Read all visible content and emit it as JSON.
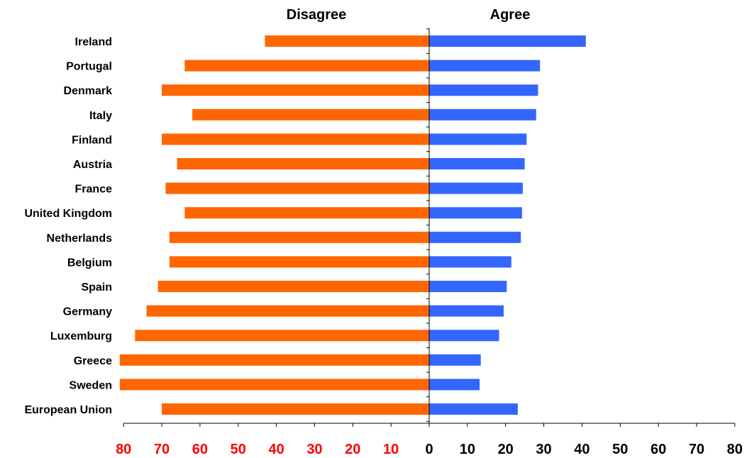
{
  "chart_data": {
    "type": "bar",
    "orientation": "horizontal-diverging",
    "headers": {
      "left": "Disagree",
      "right": "Agree"
    },
    "categories": [
      "Ireland",
      "Portugal",
      "Denmark",
      "Italy",
      "Finland",
      "Austria",
      "France",
      "United Kingdom",
      "Netherlands",
      "Belgium",
      "Spain",
      "Germany",
      "Luxemburg",
      "Greece",
      "Sweden",
      "European Union"
    ],
    "series": [
      {
        "name": "Disagree",
        "color": "#ff6600",
        "values": [
          43,
          64,
          70,
          62,
          70,
          66,
          69,
          64,
          68,
          68,
          71,
          74,
          77,
          81,
          81,
          70
        ]
      },
      {
        "name": "Agree",
        "color": "#3366ff",
        "values": [
          41,
          29,
          28.5,
          28,
          25.5,
          25,
          24.5,
          24.3,
          24,
          21.5,
          20.3,
          19.5,
          18.3,
          13.5,
          13.2,
          23.2
        ]
      }
    ],
    "xlim": [
      -80,
      80
    ],
    "ticks": {
      "left": [
        "80",
        "70",
        "60",
        "50",
        "40",
        "30",
        "20",
        "10"
      ],
      "left_color": "#ff0000",
      "right": [
        "0",
        "10",
        "20",
        "30",
        "40",
        "50",
        "60",
        "70",
        "80"
      ],
      "right_color": "#000000"
    },
    "grid": false,
    "legend": "none"
  }
}
